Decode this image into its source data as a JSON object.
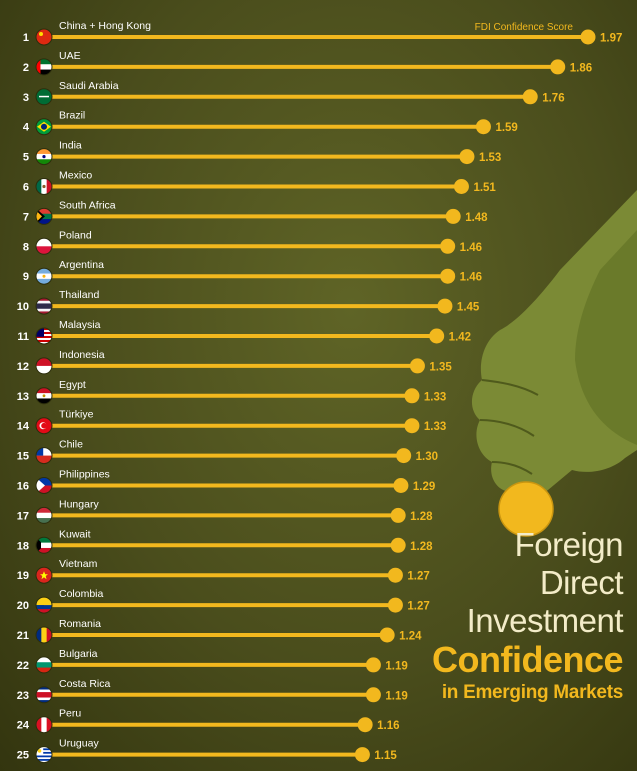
{
  "chart_data": {
    "type": "bar",
    "orientation": "horizontal",
    "title_lines": [
      "Foreign",
      "Direct",
      "Investment"
    ],
    "title_emphasis": "Confidence",
    "subtitle": "in Emerging Markets",
    "series_label": "FDI Confidence Score",
    "xlim": [
      0,
      1.97
    ],
    "grid": false,
    "legend": "none",
    "colors": {
      "bar": "#f2b81e",
      "text": "#ffffff",
      "background": "#4a4d1c",
      "title": "#f3ecc8"
    },
    "rows": [
      {
        "rank": "1",
        "country": "China + Hong Kong",
        "value": 1.97,
        "label": "1.97",
        "flag": "cn"
      },
      {
        "rank": "2",
        "country": "UAE",
        "value": 1.86,
        "label": "1.86",
        "flag": "ae"
      },
      {
        "rank": "3",
        "country": "Saudi Arabia",
        "value": 1.76,
        "label": "1.76",
        "flag": "sa"
      },
      {
        "rank": "4",
        "country": "Brazil",
        "value": 1.59,
        "label": "1.59",
        "flag": "br"
      },
      {
        "rank": "5",
        "country": "India",
        "value": 1.53,
        "label": "1.53",
        "flag": "in"
      },
      {
        "rank": "6",
        "country": "Mexico",
        "value": 1.51,
        "label": "1.51",
        "flag": "mx"
      },
      {
        "rank": "7",
        "country": "South Africa",
        "value": 1.48,
        "label": "1.48",
        "flag": "za"
      },
      {
        "rank": "8",
        "country": "Poland",
        "value": 1.46,
        "label": "1.46",
        "flag": "pl"
      },
      {
        "rank": "9",
        "country": "Argentina",
        "value": 1.46,
        "label": "1.46",
        "flag": "ar"
      },
      {
        "rank": "10",
        "country": "Thailand",
        "value": 1.45,
        "label": "1.45",
        "flag": "th"
      },
      {
        "rank": "11",
        "country": "Malaysia",
        "value": 1.42,
        "label": "1.42",
        "flag": "my"
      },
      {
        "rank": "12",
        "country": "Indonesia",
        "value": 1.35,
        "label": "1.35",
        "flag": "id"
      },
      {
        "rank": "13",
        "country": "Egypt",
        "value": 1.33,
        "label": "1.33",
        "flag": "eg"
      },
      {
        "rank": "14",
        "country": "Türkiye",
        "value": 1.33,
        "label": "1.33",
        "flag": "tr"
      },
      {
        "rank": "15",
        "country": "Chile",
        "value": 1.3,
        "label": "1.30",
        "flag": "cl"
      },
      {
        "rank": "16",
        "country": "Philippines",
        "value": 1.29,
        "label": "1.29",
        "flag": "ph"
      },
      {
        "rank": "17",
        "country": "Hungary",
        "value": 1.28,
        "label": "1.28",
        "flag": "hu"
      },
      {
        "rank": "18",
        "country": "Kuwait",
        "value": 1.28,
        "label": "1.28",
        "flag": "kw"
      },
      {
        "rank": "19",
        "country": "Vietnam",
        "value": 1.27,
        "label": "1.27",
        "flag": "vn"
      },
      {
        "rank": "20",
        "country": "Colombia",
        "value": 1.27,
        "label": "1.27",
        "flag": "co"
      },
      {
        "rank": "21",
        "country": "Romania",
        "value": 1.24,
        "label": "1.24",
        "flag": "ro"
      },
      {
        "rank": "22",
        "country": "Bulgaria",
        "value": 1.19,
        "label": "1.19",
        "flag": "bg"
      },
      {
        "rank": "23",
        "country": "Costa Rica",
        "value": 1.19,
        "label": "1.19",
        "flag": "cr"
      },
      {
        "rank": "24",
        "country": "Peru",
        "value": 1.16,
        "label": "1.16",
        "flag": "pe"
      },
      {
        "rank": "25",
        "country": "Uruguay",
        "value": 1.15,
        "label": "1.15",
        "flag": "uy"
      }
    ]
  }
}
